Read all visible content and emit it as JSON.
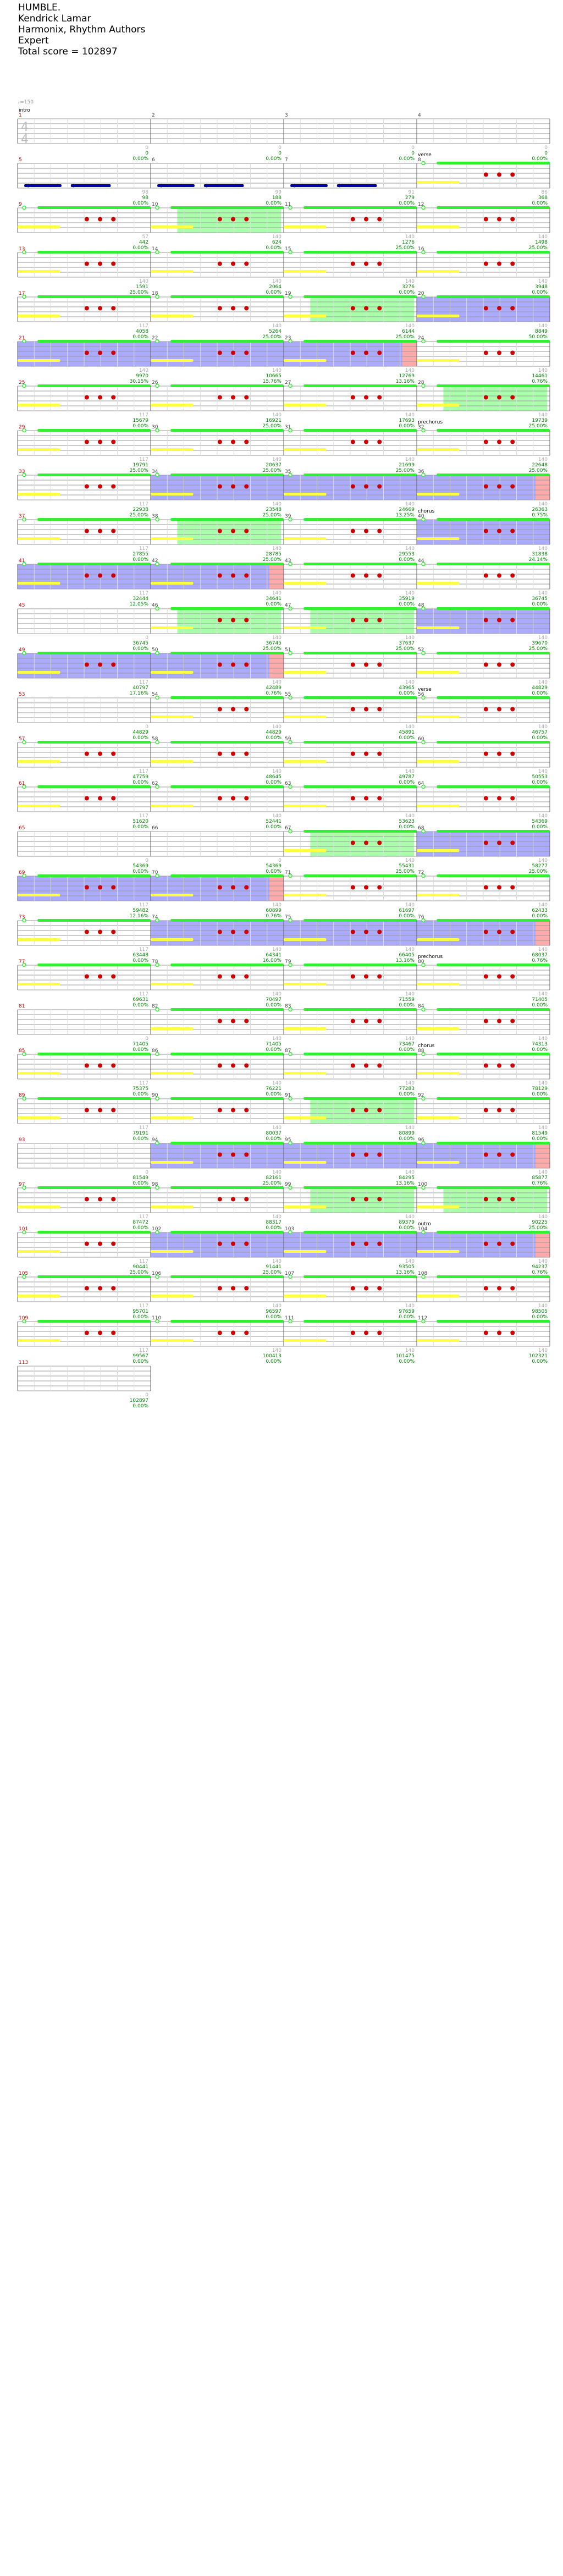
{
  "song": {
    "title": "HUMBLE.",
    "artist": " Kendrick Lamar",
    "authors": "Harmonix, Rhythm Authors",
    "difficulty": "Expert",
    "total_score_text": "Total score = 102897"
  },
  "time_signature": {
    "top": "4",
    "bottom": "4"
  },
  "tempo_mark": "♩=150",
  "sections": [
    {
      "measure": 1,
      "name": "intro"
    },
    {
      "measure": 8,
      "name": "verse"
    },
    {
      "measure": 32,
      "name": "prechorus"
    },
    {
      "measure": 40,
      "name": "chorus"
    },
    {
      "measure": 56,
      "name": "verse"
    },
    {
      "measure": 80,
      "name": "prechorus"
    },
    {
      "measure": 88,
      "name": "chorus"
    },
    {
      "measure": 104,
      "name": "outro"
    }
  ],
  "measures": [
    {
      "num": 1,
      "notes": 0,
      "score": "0",
      "pct": "0.00%"
    },
    {
      "num": 2,
      "notes": 0,
      "score": "0",
      "pct": "0.00%"
    },
    {
      "num": 3,
      "notes": 0,
      "score": "0",
      "pct": "0.00%"
    },
    {
      "num": 4,
      "notes": 0,
      "score": "0",
      "pct": "0.00%"
    },
    {
      "num": 5,
      "notes": 98,
      "score": "98",
      "pct": "0.00%"
    },
    {
      "num": 6,
      "notes": 99,
      "score": "188",
      "pct": "0.00%"
    },
    {
      "num": 7,
      "notes": 91,
      "score": "279",
      "pct": "0.00%"
    },
    {
      "num": 8,
      "notes": 86,
      "score": "368",
      "pct": "0.00%"
    },
    {
      "num": 9,
      "notes": 57,
      "score": "442",
      "pct": "0.00%"
    },
    {
      "num": 10,
      "notes": 140,
      "score": "624",
      "pct": "0.00%"
    },
    {
      "num": 11,
      "notes": 140,
      "score": "1276",
      "pct": "25.00%"
    },
    {
      "num": 12,
      "notes": 140,
      "score": "1498",
      "pct": "25.00%"
    },
    {
      "num": 13,
      "notes": 140,
      "score": "1591",
      "pct": "25.00%"
    },
    {
      "num": 14,
      "notes": 140,
      "score": "2064",
      "pct": "0.00%"
    },
    {
      "num": 15,
      "notes": 140,
      "score": "3276",
      "pct": "0.00%"
    },
    {
      "num": 16,
      "notes": 140,
      "score": "3948",
      "pct": "0.00%"
    },
    {
      "num": 17,
      "notes": 117,
      "score": "4058",
      "pct": "0.00%"
    },
    {
      "num": 18,
      "notes": 140,
      "score": "5264",
      "pct": "25.00%"
    },
    {
      "num": 19,
      "notes": 140,
      "score": "6144",
      "pct": "25.00%"
    },
    {
      "num": 20,
      "notes": 140,
      "score": "8849",
      "pct": "50.00%"
    },
    {
      "num": 21,
      "notes": 140,
      "score": "9970",
      "pct": "30.15%"
    },
    {
      "num": 22,
      "notes": 140,
      "score": "10665",
      "pct": "15.76%"
    },
    {
      "num": 23,
      "notes": 140,
      "score": "12769",
      "pct": "13.16%"
    },
    {
      "num": 24,
      "notes": 140,
      "score": "14461",
      "pct": "0.76%"
    },
    {
      "num": 25,
      "notes": 117,
      "score": "15679",
      "pct": "0.00%"
    },
    {
      "num": 26,
      "notes": 140,
      "score": "16921",
      "pct": "25.00%"
    },
    {
      "num": 27,
      "notes": 140,
      "score": "17693",
      "pct": "0.00%"
    },
    {
      "num": 28,
      "notes": 140,
      "score": "19739",
      "pct": "25.00%"
    },
    {
      "num": 29,
      "notes": 117,
      "score": "19791",
      "pct": "25.00%"
    },
    {
      "num": 30,
      "notes": 140,
      "score": "20637",
      "pct": "25.00%"
    },
    {
      "num": 31,
      "notes": 140,
      "score": "21699",
      "pct": "25.00%"
    },
    {
      "num": 32,
      "notes": 140,
      "score": "22648",
      "pct": "25.00%"
    },
    {
      "num": 33,
      "notes": 117,
      "score": "22938",
      "pct": "25.00%"
    },
    {
      "num": 34,
      "notes": 140,
      "score": "23548",
      "pct": "25.00%"
    },
    {
      "num": 35,
      "notes": 140,
      "score": "24669",
      "pct": "13.25%"
    },
    {
      "num": 36,
      "notes": 140,
      "score": "26363",
      "pct": "0.75%"
    },
    {
      "num": 37,
      "notes": 117,
      "score": "27855",
      "pct": "0.00%"
    },
    {
      "num": 38,
      "notes": 140,
      "score": "28785",
      "pct": "25.00%"
    },
    {
      "num": 39,
      "notes": 140,
      "score": "29553",
      "pct": "0.00%"
    },
    {
      "num": 40,
      "notes": 140,
      "score": "31838",
      "pct": "24.14%"
    },
    {
      "num": 41,
      "notes": 117,
      "score": "32444",
      "pct": "12.05%"
    },
    {
      "num": 42,
      "notes": 140,
      "score": "34641",
      "pct": "0.00%"
    },
    {
      "num": 43,
      "notes": 140,
      "score": "35919",
      "pct": "0.00%"
    },
    {
      "num": 44,
      "notes": 140,
      "score": "36745",
      "pct": "0.00%"
    },
    {
      "num": 45,
      "notes": 0,
      "score": "36745",
      "pct": "0.00%"
    },
    {
      "num": 46,
      "notes": 140,
      "score": "36745",
      "pct": "25.00%"
    },
    {
      "num": 47,
      "notes": 140,
      "score": "37637",
      "pct": "25.00%"
    },
    {
      "num": 48,
      "notes": 140,
      "score": "39670",
      "pct": "25.00%"
    },
    {
      "num": 49,
      "notes": 117,
      "score": "40797",
      "pct": "17.16%"
    },
    {
      "num": 50,
      "notes": 140,
      "score": "42489",
      "pct": "0.76%"
    },
    {
      "num": 51,
      "notes": 140,
      "score": "43965",
      "pct": "0.00%"
    },
    {
      "num": 52,
      "notes": 140,
      "score": "44829",
      "pct": "0.00%"
    },
    {
      "num": 53,
      "notes": 0,
      "score": "44829",
      "pct": "0.00%"
    },
    {
      "num": 54,
      "notes": 140,
      "score": "44829",
      "pct": "0.00%"
    },
    {
      "num": 55,
      "notes": 140,
      "score": "45891",
      "pct": "0.00%"
    },
    {
      "num": 56,
      "notes": 140,
      "score": "46757",
      "pct": "0.00%"
    },
    {
      "num": 57,
      "notes": 117,
      "score": "47759",
      "pct": "0.00%"
    },
    {
      "num": 58,
      "notes": 140,
      "score": "48645",
      "pct": "0.00%"
    },
    {
      "num": 59,
      "notes": 140,
      "score": "49787",
      "pct": "0.00%"
    },
    {
      "num": 60,
      "notes": 140,
      "score": "50553",
      "pct": "0.00%"
    },
    {
      "num": 61,
      "notes": 117,
      "score": "51620",
      "pct": "0.00%"
    },
    {
      "num": 62,
      "notes": 140,
      "score": "52441",
      "pct": "0.00%"
    },
    {
      "num": 63,
      "notes": 140,
      "score": "53623",
      "pct": "0.00%"
    },
    {
      "num": 64,
      "notes": 140,
      "score": "54369",
      "pct": "0.00%"
    },
    {
      "num": 65,
      "notes": 0,
      "score": "54369",
      "pct": "0.00%"
    },
    {
      "num": 66,
      "notes": 0,
      "score": "54369",
      "pct": "0.00%"
    },
    {
      "num": 67,
      "notes": 140,
      "score": "55431",
      "pct": "25.00%"
    },
    {
      "num": 68,
      "notes": 140,
      "score": "58277",
      "pct": "25.00%"
    },
    {
      "num": 69,
      "notes": 117,
      "score": "59482",
      "pct": "12.16%"
    },
    {
      "num": 70,
      "notes": 140,
      "score": "60899",
      "pct": "0.76%"
    },
    {
      "num": 71,
      "notes": 140,
      "score": "61697",
      "pct": "0.00%"
    },
    {
      "num": 72,
      "notes": 140,
      "score": "62433",
      "pct": "0.00%"
    },
    {
      "num": 73,
      "notes": 117,
      "score": "63448",
      "pct": "0.00%"
    },
    {
      "num": 74,
      "notes": 140,
      "score": "64341",
      "pct": "16.00%"
    },
    {
      "num": 75,
      "notes": 140,
      "score": "66405",
      "pct": "13.16%"
    },
    {
      "num": 76,
      "notes": 140,
      "score": "68037",
      "pct": "0.76%"
    },
    {
      "num": 77,
      "notes": 117,
      "score": "69631",
      "pct": "0.00%"
    },
    {
      "num": 78,
      "notes": 140,
      "score": "70497",
      "pct": "0.00%"
    },
    {
      "num": 79,
      "notes": 140,
      "score": "71559",
      "pct": "0.00%"
    },
    {
      "num": 80,
      "notes": 140,
      "score": "71405",
      "pct": "0.00%"
    },
    {
      "num": 81,
      "notes": 0,
      "score": "71405",
      "pct": "0.00%"
    },
    {
      "num": 82,
      "notes": 140,
      "score": "71405",
      "pct": "0.00%"
    },
    {
      "num": 83,
      "notes": 140,
      "score": "73467",
      "pct": "0.00%"
    },
    {
      "num": 84,
      "notes": 140,
      "score": "74313",
      "pct": "0.00%"
    },
    {
      "num": 85,
      "notes": 117,
      "score": "75375",
      "pct": "0.00%"
    },
    {
      "num": 86,
      "notes": 140,
      "score": "76221",
      "pct": "0.00%"
    },
    {
      "num": 87,
      "notes": 140,
      "score": "77283",
      "pct": "0.00%"
    },
    {
      "num": 88,
      "notes": 140,
      "score": "78129",
      "pct": "0.00%"
    },
    {
      "num": 89,
      "notes": 117,
      "score": "79191",
      "pct": "0.00%"
    },
    {
      "num": 90,
      "notes": 140,
      "score": "80037",
      "pct": "0.00%"
    },
    {
      "num": 91,
      "notes": 140,
      "score": "80899",
      "pct": "0.00%"
    },
    {
      "num": 92,
      "notes": 140,
      "score": "81549",
      "pct": "0.00%"
    },
    {
      "num": 93,
      "notes": 0,
      "score": "81549",
      "pct": "0.00%"
    },
    {
      "num": 94,
      "notes": 140,
      "score": "82161",
      "pct": "25.00%"
    },
    {
      "num": 95,
      "notes": 140,
      "score": "84295",
      "pct": "13.16%"
    },
    {
      "num": 96,
      "notes": 140,
      "score": "85877",
      "pct": "0.76%"
    },
    {
      "num": 97,
      "notes": 117,
      "score": "87472",
      "pct": "0.00%"
    },
    {
      "num": 98,
      "notes": 140,
      "score": "88317",
      "pct": "0.00%"
    },
    {
      "num": 99,
      "notes": 140,
      "score": "89379",
      "pct": "0.00%"
    },
    {
      "num": 100,
      "notes": 140,
      "score": "90225",
      "pct": "25.00%"
    },
    {
      "num": 101,
      "notes": 117,
      "score": "90441",
      "pct": "25.00%"
    },
    {
      "num": 102,
      "notes": 140,
      "score": "91441",
      "pct": "25.00%"
    },
    {
      "num": 103,
      "notes": 140,
      "score": "93505",
      "pct": "13.16%"
    },
    {
      "num": 104,
      "notes": 140,
      "score": "94237",
      "pct": "0.76%"
    },
    {
      "num": 105,
      "notes": 117,
      "score": "95701",
      "pct": "0.00%"
    },
    {
      "num": 106,
      "notes": 140,
      "score": "96597",
      "pct": "0.00%"
    },
    {
      "num": 107,
      "notes": 140,
      "score": "97659",
      "pct": "0.00%"
    },
    {
      "num": 108,
      "notes": 140,
      "score": "98505",
      "pct": "0.00%"
    },
    {
      "num": 109,
      "notes": 117,
      "score": "99567",
      "pct": "0.00%"
    },
    {
      "num": 110,
      "notes": 140,
      "score": "100413",
      "pct": "0.00%"
    },
    {
      "num": 111,
      "notes": 140,
      "score": "101475",
      "pct": "0.00%"
    },
    {
      "num": 112,
      "notes": 140,
      "score": "102321",
      "pct": "0.00%"
    },
    {
      "num": 113,
      "notes": 0,
      "score": "102897",
      "pct": "0.00%"
    }
  ],
  "overdrive_measures": [
    10,
    19,
    28,
    38,
    46,
    47,
    67,
    74,
    91,
    99,
    100
  ],
  "star_power_ranges": [
    [
      20,
      23
    ],
    [
      34,
      36
    ],
    [
      40,
      42
    ],
    [
      48,
      50
    ],
    [
      68,
      70
    ],
    [
      74,
      76
    ],
    [
      94,
      96
    ],
    [
      102,
      104
    ]
  ],
  "colors": {
    "staff_line": "#999999",
    "measure_number": "#cc0000",
    "score_text": "#008800",
    "note_count": "#aaaaaa",
    "kick_blue": "#0000aa",
    "sustain_green": "#33ee33",
    "sustain_yellow": "#ffff44",
    "gem_red": "#cc0000",
    "gem_yellow": "#eeee00",
    "overdrive_fill": "#aaffaa",
    "starpower_fill": "#aaaaff",
    "starpower_end": "#ffaaaa"
  }
}
